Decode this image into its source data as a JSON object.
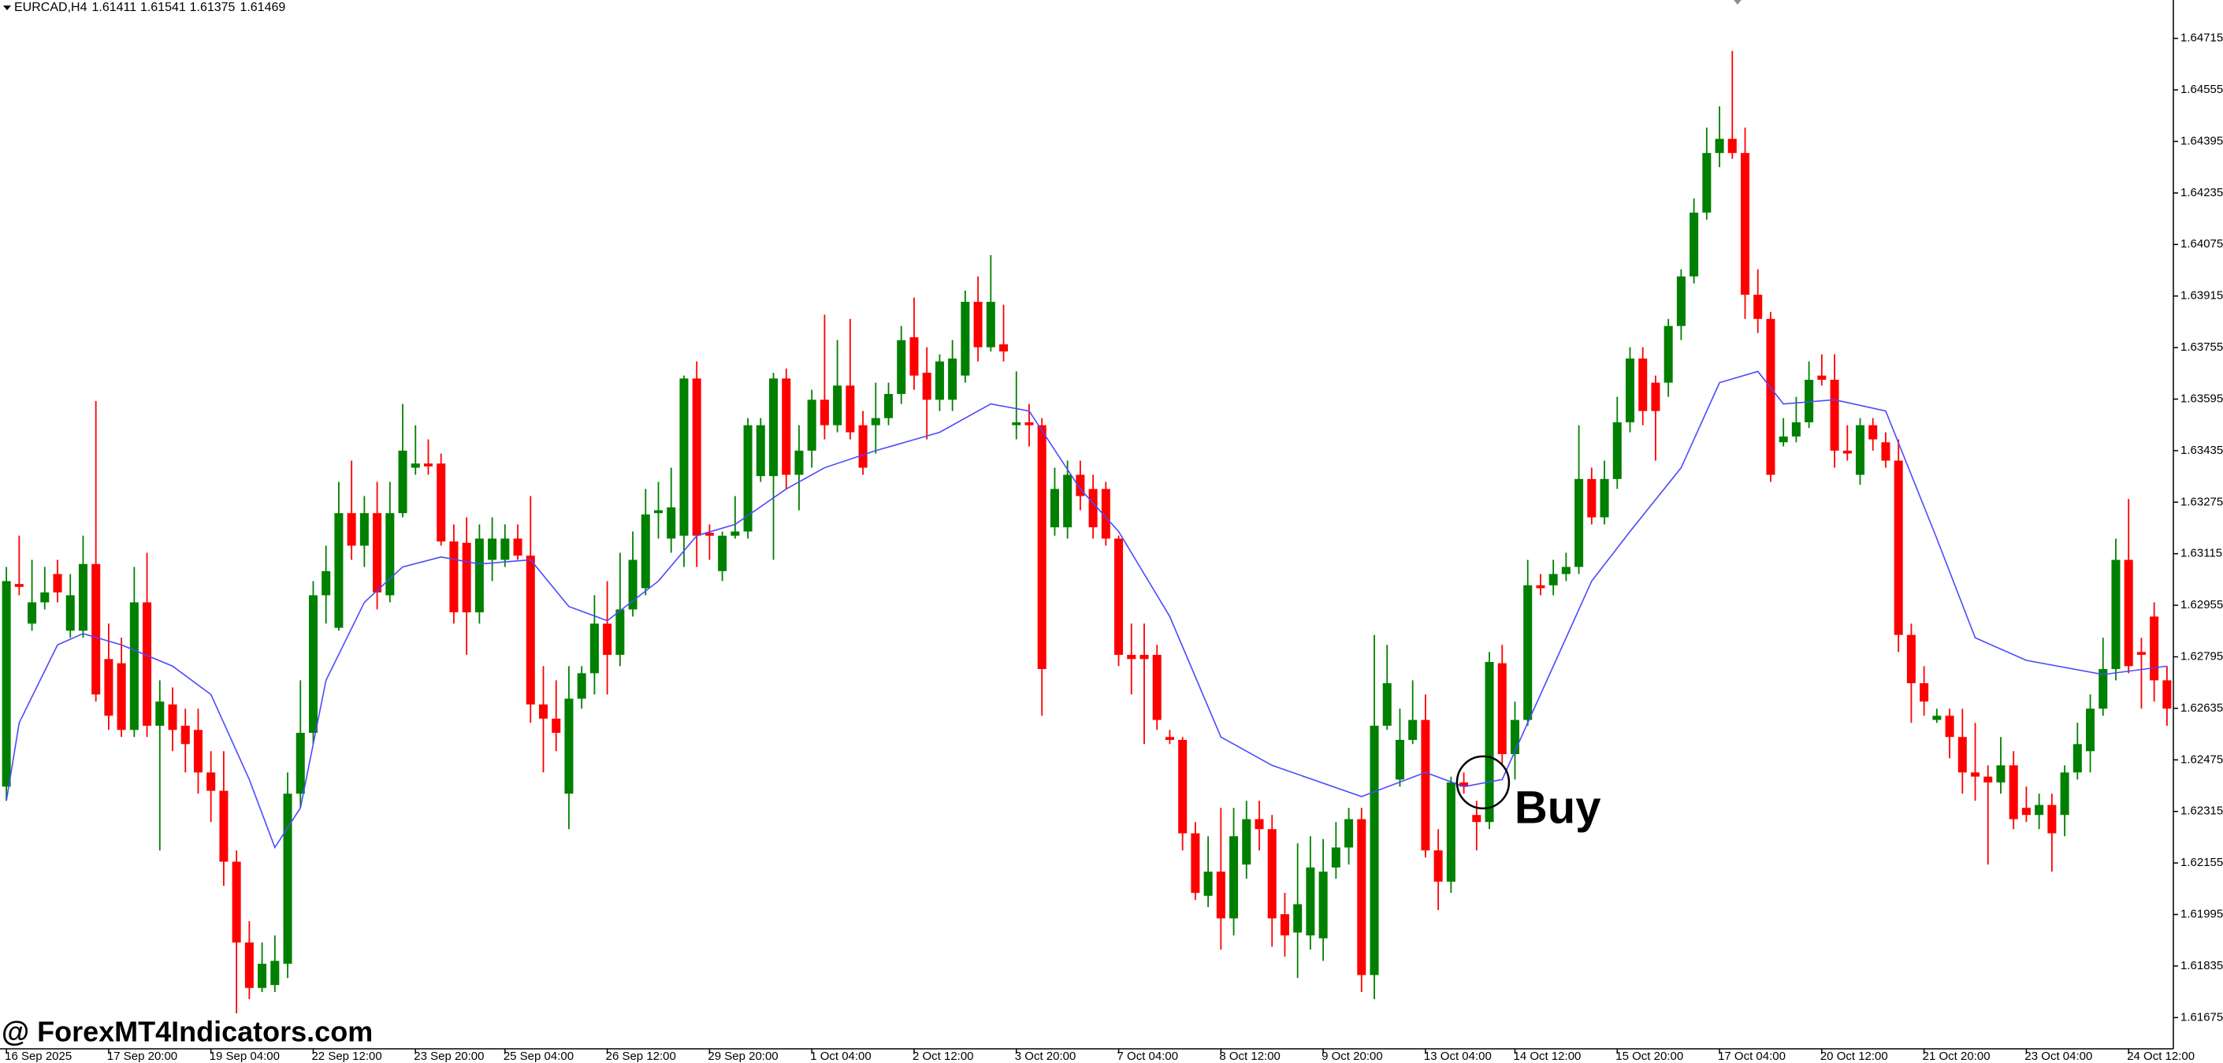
{
  "chart_data": {
    "type": "candlestick",
    "symbol": "EURCAD,H4",
    "quote": [
      1.61411,
      1.61541,
      1.61375,
      1.61469
    ],
    "watermark": "@ ForexMT4Indicators.com",
    "up_color": "#008000",
    "down_color": "#ff0000",
    "ma_color": "#4a4aff",
    "ylim": [
      1.61578,
      1.64834
    ],
    "yticks": [
      1.64715,
      1.64555,
      1.64395,
      1.64235,
      1.64075,
      1.63915,
      1.63755,
      1.63595,
      1.63435,
      1.63275,
      1.63115,
      1.62955,
      1.62795,
      1.62635,
      1.62475,
      1.62315,
      1.62155,
      1.61995,
      1.61835,
      1.61675
    ],
    "xlim": [
      -0.5,
      169.5
    ],
    "xticks": [
      {
        "value": 0,
        "label": "16 Sep 2025"
      },
      {
        "value": 8,
        "label": "17 Sep 20:00"
      },
      {
        "value": 16,
        "label": "19 Sep 04:00"
      },
      {
        "value": 24,
        "label": "22 Sep 12:00"
      },
      {
        "value": 32,
        "label": "23 Sep 20:00"
      },
      {
        "value": 39,
        "label": "25 Sep 04:00"
      },
      {
        "value": 47,
        "label": "26 Sep 12:00"
      },
      {
        "value": 55,
        "label": "29 Sep 20:00"
      },
      {
        "value": 63,
        "label": "1 Oct 04:00"
      },
      {
        "value": 71,
        "label": "2 Oct 12:00"
      },
      {
        "value": 79,
        "label": "3 Oct 20:00"
      },
      {
        "value": 87,
        "label": "7 Oct 04:00"
      },
      {
        "value": 95,
        "label": "8 Oct 12:00"
      },
      {
        "value": 103,
        "label": "9 Oct 20:00"
      },
      {
        "value": 111,
        "label": "13 Oct 04:00"
      },
      {
        "value": 118,
        "label": "14 Oct 12:00"
      },
      {
        "value": 126,
        "label": "15 Oct 20:00"
      },
      {
        "value": 134,
        "label": "17 Oct 04:00"
      },
      {
        "value": 142,
        "label": "20 Oct 12:00"
      },
      {
        "value": 150,
        "label": "21 Oct 20:00"
      },
      {
        "value": 158,
        "label": "23 Oct 04:00"
      },
      {
        "value": 166,
        "label": "24 Oct 12:00"
      }
    ],
    "open": [
      1.62392,
      1.63021,
      1.62898,
      1.62964,
      1.63052,
      1.62876,
      1.62876,
      1.63083,
      1.62788,
      1.62775,
      1.62568,
      1.62964,
      1.62581,
      1.62647,
      1.62581,
      1.62568,
      1.62436,
      1.62379,
      1.62159,
      1.61908,
      1.61767,
      1.61776,
      1.61842,
      1.6237,
      1.62559,
      1.62986,
      1.62885,
      1.63241,
      1.6314,
      1.63241,
      1.62986,
      1.63241,
      1.63382,
      1.63395,
      1.63395,
      1.63153,
      1.63149,
      1.62933,
      1.63096,
      1.63096,
      1.63162,
      1.63109,
      1.62647,
      1.62603,
      1.6237,
      1.62665,
      1.62744,
      1.62898,
      1.62801,
      1.62942,
      1.63008,
      1.63241,
      1.63162,
      1.63171,
      1.63659,
      1.6318,
      1.63061,
      1.63171,
      1.63184,
      1.63356,
      1.63356,
      1.63659,
      1.6336,
      1.63435,
      1.63593,
      1.63514,
      1.63637,
      1.63514,
      1.63514,
      1.63536,
      1.63611,
      1.63787,
      1.63677,
      1.63593,
      1.63593,
      1.63668,
      1.63897,
      1.63756,
      1.63765,
      1.63514,
      1.63523,
      1.63514,
      1.63197,
      1.63197,
      1.6336,
      1.63316,
      1.63316,
      1.63162,
      1.62801,
      1.62801,
      1.62801,
      1.62546,
      1.62537,
      1.62247,
      1.62053,
      1.62128,
      1.61983,
      1.6215,
      1.62291,
      1.6226,
      1.61996,
      1.61939,
      1.6193,
      1.61921,
      1.62141,
      1.62203,
      1.62291,
      1.61807,
      1.62581,
      1.62414,
      1.62537,
      1.62599,
      1.62194,
      1.62097,
      1.62405,
      1.62304,
      1.62282,
      1.62775,
      1.62493,
      1.62599,
      1.63017,
      1.63017,
      1.63052,
      1.63074,
      1.63347,
      1.63228,
      1.63347,
      1.63523,
      1.63721,
      1.63646,
      1.63646,
      1.63822,
      1.63976,
      1.64174,
      1.64359,
      1.64403,
      1.64359,
      1.63919,
      1.63844,
      1.63461,
      1.63479,
      1.63523,
      1.63668,
      1.63655,
      1.63435,
      1.6336,
      1.63514,
      1.63461,
      1.63404,
      1.62863,
      1.62713,
      1.62599,
      1.62612,
      1.62546,
      1.62436,
      1.62423,
      1.62405,
      1.62458,
      1.62326,
      1.62304,
      1.62335,
      1.62304,
      1.62436,
      1.62502,
      1.62634,
      1.62757,
      1.63096,
      1.6281,
      1.6292,
      1.62722
    ],
    "high": [
      1.63074,
      1.63171,
      1.63096,
      1.63074,
      1.63096,
      1.63052,
      1.63171,
      1.63589,
      1.62898,
      1.62854,
      1.63074,
      1.63118,
      1.62722,
      1.627,
      1.62634,
      1.62634,
      1.62502,
      1.62502,
      1.62194,
      1.61974,
      1.61908,
      1.6193,
      1.62436,
      1.62722,
      1.6303,
      1.6314,
      1.63338,
      1.63404,
      1.63294,
      1.63338,
      1.63338,
      1.6358,
      1.63514,
      1.6347,
      1.63426,
      1.63206,
      1.63228,
      1.63206,
      1.63228,
      1.63206,
      1.63206,
      1.63294,
      1.62766,
      1.62722,
      1.62766,
      1.62766,
      1.62986,
      1.6303,
      1.63118,
      1.63184,
      1.63316,
      1.63338,
      1.63382,
      1.63668,
      1.63712,
      1.63206,
      1.63184,
      1.63294,
      1.63536,
      1.63536,
      1.63677,
      1.6369,
      1.63514,
      1.63624,
      1.63857,
      1.63778,
      1.63844,
      1.63558,
      1.63646,
      1.63646,
      1.63822,
      1.6391,
      1.63756,
      1.63734,
      1.63778,
      1.63932,
      1.63976,
      1.64042,
      1.63888,
      1.63681,
      1.6358,
      1.63536,
      1.63382,
      1.63404,
      1.63404,
      1.6336,
      1.63338,
      1.63171,
      1.62898,
      1.62898,
      1.62832,
      1.62568,
      1.62546,
      1.62282,
      1.62238,
      1.62326,
      1.62326,
      1.62348,
      1.62348,
      1.62304,
      1.62062,
      1.62216,
      1.62238,
      1.62229,
      1.62282,
      1.62326,
      1.62326,
      1.62863,
      1.62832,
      1.62634,
      1.62722,
      1.62678,
      1.6226,
      1.62423,
      1.62436,
      1.62348,
      1.6281,
      1.62832,
      1.62656,
      1.63096,
      1.63052,
      1.63096,
      1.63118,
      1.63514,
      1.63382,
      1.63404,
      1.63602,
      1.63756,
      1.63756,
      1.63668,
      1.63844,
      1.63998,
      1.64218,
      1.64438,
      1.64504,
      1.64676,
      1.64438,
      1.63998,
      1.63866,
      1.63536,
      1.63602,
      1.63712,
      1.63734,
      1.63734,
      1.63514,
      1.63536,
      1.63536,
      1.63492,
      1.6347,
      1.62898,
      1.62766,
      1.62634,
      1.62634,
      1.62634,
      1.6259,
      1.62458,
      1.62546,
      1.62502,
      1.62392,
      1.6237,
      1.6237,
      1.62458,
      1.6259,
      1.62678,
      1.62854,
      1.63162,
      1.63285,
      1.62854,
      1.62964,
      1.62766
    ],
    "low": [
      1.62348,
      1.62986,
      1.62876,
      1.62942,
      1.62964,
      1.62854,
      1.62854,
      1.62656,
      1.62568,
      1.62546,
      1.62546,
      1.62546,
      1.62194,
      1.62502,
      1.62436,
      1.6237,
      1.62282,
      1.62084,
      1.61688,
      1.61732,
      1.61754,
      1.61754,
      1.61798,
      1.62326,
      1.62524,
      1.62898,
      1.62876,
      1.63096,
      1.63074,
      1.62942,
      1.62964,
      1.63228,
      1.6336,
      1.6336,
      1.6314,
      1.62898,
      1.62801,
      1.62898,
      1.6303,
      1.63074,
      1.63096,
      1.6259,
      1.62436,
      1.62502,
      1.6226,
      1.62634,
      1.62678,
      1.62678,
      1.62766,
      1.6292,
      1.62986,
      1.63162,
      1.63118,
      1.63074,
      1.63074,
      1.63096,
      1.6303,
      1.63162,
      1.63162,
      1.63338,
      1.63096,
      1.63316,
      1.6325,
      1.63382,
      1.6347,
      1.63492,
      1.6347,
      1.6336,
      1.63426,
      1.63514,
      1.6358,
      1.63624,
      1.6347,
      1.63558,
      1.63558,
      1.63646,
      1.63712,
      1.63743,
      1.63712,
      1.6347,
      1.63448,
      1.62612,
      1.63171,
      1.63162,
      1.6325,
      1.63162,
      1.6314,
      1.62766,
      1.62678,
      1.62524,
      1.62568,
      1.62524,
      1.62194,
      1.6204,
      1.62018,
      1.61886,
      1.6193,
      1.62106,
      1.62194,
      1.61895,
      1.61864,
      1.61798,
      1.61886,
      1.61851,
      1.62106,
      1.6215,
      1.61754,
      1.61732,
      1.62568,
      1.62392,
      1.62524,
      1.62172,
      1.62009,
      1.62062,
      1.6237,
      1.62194,
      1.6226,
      1.62458,
      1.62414,
      1.62581,
      1.62986,
      1.62986,
      1.6303,
      1.63052,
      1.63206,
      1.63206,
      1.63316,
      1.63492,
      1.63514,
      1.63404,
      1.63602,
      1.63778,
      1.63954,
      1.64152,
      1.64315,
      1.64341,
      1.63844,
      1.638,
      1.63338,
      1.63448,
      1.63461,
      1.63505,
      1.63637,
      1.63382,
      1.63404,
      1.63329,
      1.63435,
      1.63382,
      1.6281,
      1.6259,
      1.62612,
      1.6259,
      1.6248,
      1.6237,
      1.62348,
      1.6215,
      1.6237,
      1.6226,
      1.62282,
      1.6226,
      1.62128,
      1.62238,
      1.62414,
      1.62436,
      1.62612,
      1.62722,
      1.62744,
      1.62634,
      1.62656,
      1.62581
    ],
    "close": [
      1.6303,
      1.63012,
      1.62964,
      1.62995,
      1.62995,
      1.62986,
      1.63083,
      1.62678,
      1.62612,
      1.62568,
      1.62964,
      1.62581,
      1.62656,
      1.62568,
      1.62524,
      1.62436,
      1.62379,
      1.62159,
      1.61908,
      1.61767,
      1.61842,
      1.61851,
      1.6237,
      1.62559,
      1.62986,
      1.63061,
      1.63241,
      1.6314,
      1.63241,
      1.62995,
      1.63241,
      1.63435,
      1.63395,
      1.63386,
      1.63153,
      1.62933,
      1.62933,
      1.63162,
      1.63162,
      1.63162,
      1.63109,
      1.62647,
      1.62603,
      1.62559,
      1.62665,
      1.62744,
      1.62898,
      1.62801,
      1.62942,
      1.63096,
      1.63237,
      1.6325,
      1.63259,
      1.63659,
      1.63171,
      1.63171,
      1.63171,
      1.63184,
      1.63514,
      1.63514,
      1.63659,
      1.6336,
      1.63435,
      1.63593,
      1.63514,
      1.63637,
      1.63492,
      1.63382,
      1.63536,
      1.63611,
      1.63778,
      1.63668,
      1.63593,
      1.63712,
      1.63721,
      1.63897,
      1.63756,
      1.63897,
      1.63743,
      1.63523,
      1.63514,
      1.62757,
      1.63316,
      1.6336,
      1.63294,
      1.63197,
      1.63162,
      1.62801,
      1.62788,
      1.62788,
      1.62599,
      1.62537,
      1.62247,
      1.62062,
      1.62128,
      1.61983,
      1.62238,
      1.62291,
      1.6226,
      1.61983,
      1.6193,
      1.62027,
      1.62141,
      1.62128,
      1.62203,
      1.62291,
      1.61807,
      1.62581,
      1.62713,
      1.62537,
      1.62599,
      1.62194,
      1.62097,
      1.62405,
      1.62392,
      1.62282,
      1.62779,
      1.62493,
      1.62599,
      1.63017,
      1.63008,
      1.63052,
      1.63074,
      1.63347,
      1.63228,
      1.63347,
      1.63523,
      1.63721,
      1.63558,
      1.63558,
      1.63822,
      1.63976,
      1.64174,
      1.64359,
      1.64403,
      1.64359,
      1.63919,
      1.63844,
      1.6336,
      1.63479,
      1.63523,
      1.63655,
      1.63655,
      1.63435,
      1.63426,
      1.63514,
      1.6347,
      1.63404,
      1.62863,
      1.62713,
      1.62656,
      1.62612,
      1.62546,
      1.62436,
      1.62423,
      1.62405,
      1.62458,
      1.62291,
      1.62304,
      1.62335,
      1.62247,
      1.62436,
      1.62524,
      1.62634,
      1.62757,
      1.63096,
      1.62766,
      1.62801,
      1.62722,
      1.62634
    ],
    "ma_x": [
      0,
      1,
      4,
      6,
      9,
      13,
      16,
      19,
      21,
      23,
      25,
      28,
      31,
      34,
      37,
      41,
      44,
      47,
      51,
      54,
      57,
      61,
      64,
      68,
      73,
      77,
      80,
      84,
      87,
      91,
      95,
      99,
      106,
      111,
      114,
      117,
      121,
      124,
      127,
      131,
      134,
      137,
      139,
      143,
      147,
      151,
      154,
      158,
      164,
      169
    ],
    "ma_values": [
      1.62348,
      1.6259,
      1.62832,
      1.62867,
      1.62832,
      1.62766,
      1.62678,
      1.62414,
      1.62203,
      1.62326,
      1.62722,
      1.62964,
      1.63074,
      1.63105,
      1.63083,
      1.63096,
      1.62951,
      1.62907,
      1.6303,
      1.63171,
      1.63206,
      1.63316,
      1.63382,
      1.63435,
      1.63492,
      1.6358,
      1.63558,
      1.63316,
      1.63184,
      1.6292,
      1.62546,
      1.62458,
      1.62361,
      1.62436,
      1.62392,
      1.62414,
      1.62766,
      1.6303,
      1.63184,
      1.63382,
      1.63646,
      1.63681,
      1.6358,
      1.63593,
      1.63558,
      1.63162,
      1.62854,
      1.62784,
      1.6274,
      1.62766
    ],
    "annotation": {
      "text": "Buy",
      "x": 115.5,
      "price": 1.62405
    }
  }
}
